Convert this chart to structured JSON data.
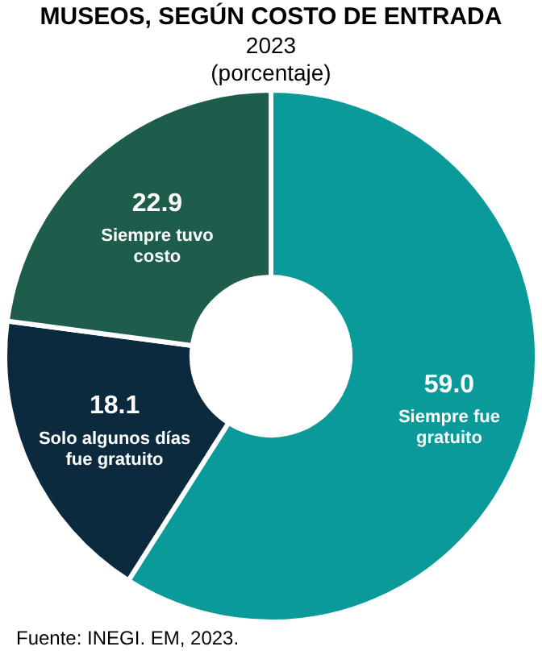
{
  "chart_data": {
    "type": "donut",
    "title": "MUSEOS, SEGÚN COSTO DE ENTRADA",
    "subtitle": "2023",
    "ylabel": "(porcentaje)",
    "categories": [
      "Siempre fue gratuito",
      "Solo algunos días fue gratuito",
      "Siempre tuvo costo"
    ],
    "values": [
      59.0,
      18.1,
      22.9
    ],
    "colors": [
      "#0b9a9a",
      "#0b2a3d",
      "#1e5c4c"
    ],
    "value_labels": [
      "59.0",
      "18.1",
      "22.9"
    ],
    "annotations": [
      "Fuente: INEGI. EM, 2023."
    ]
  }
}
